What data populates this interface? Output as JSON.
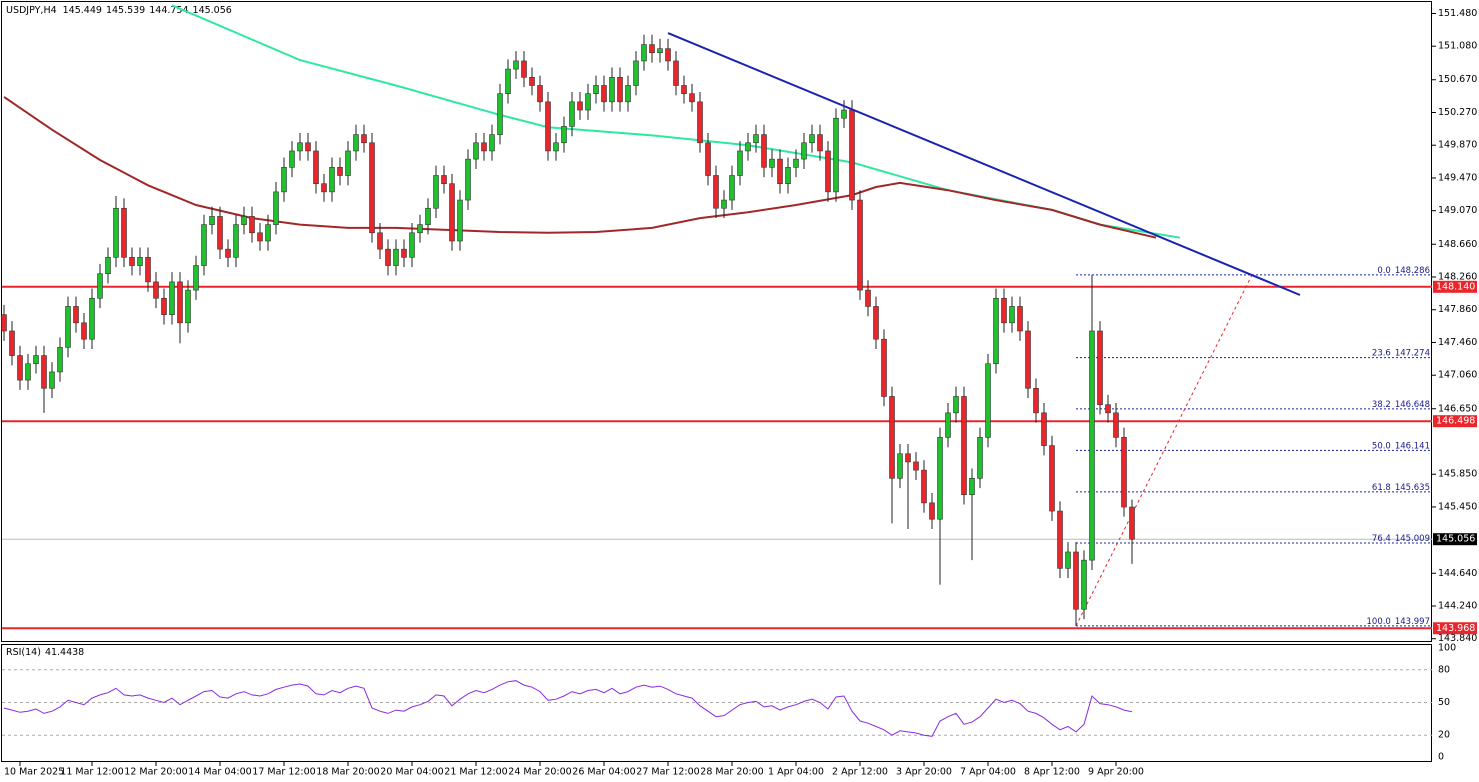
{
  "chart_data": {
    "type": "candlestick",
    "symbol": "USDJPY,H4",
    "xlim": [
      -0.5,
      178.5
    ],
    "ylim": [
      143.8,
      151.62
    ],
    "yticks": [
      {
        "value": 151.48,
        "label": "151.480"
      },
      {
        "value": 151.08,
        "label": "151.080"
      },
      {
        "value": 150.67,
        "label": "150.670"
      },
      {
        "value": 150.27,
        "label": "150.270"
      },
      {
        "value": 149.87,
        "label": "149.870"
      },
      {
        "value": 149.47,
        "label": "149.470"
      },
      {
        "value": 149.07,
        "label": "149.070"
      },
      {
        "value": 148.66,
        "label": "148.660"
      },
      {
        "value": 148.26,
        "label": "148.260"
      },
      {
        "value": 147.86,
        "label": "147.860"
      },
      {
        "value": 147.46,
        "label": "147.460"
      },
      {
        "value": 147.06,
        "label": "147.060"
      },
      {
        "value": 146.65,
        "label": "146.650"
      },
      {
        "value": 145.85,
        "label": "145.850"
      },
      {
        "value": 145.45,
        "label": "145.450"
      },
      {
        "value": 144.64,
        "label": "144.640"
      },
      {
        "value": 144.24,
        "label": "144.240"
      },
      {
        "value": 143.84,
        "label": "143.840"
      }
    ],
    "xticks": [
      {
        "value": 2,
        "label": "10 Mar 2025"
      },
      {
        "value": 11,
        "label": "11 Mar 12:00"
      },
      {
        "value": 19,
        "label": "12 Mar 20:00"
      },
      {
        "value": 27,
        "label": "14 Mar 04:00"
      },
      {
        "value": 35,
        "label": "17 Mar 12:00"
      },
      {
        "value": 43,
        "label": "18 Mar 20:00"
      },
      {
        "value": 51,
        "label": "20 Mar 04:00"
      },
      {
        "value": 59,
        "label": "21 Mar 12:00"
      },
      {
        "value": 67,
        "label": "24 Mar 20:00"
      },
      {
        "value": 75,
        "label": "26 Mar 04:00"
      },
      {
        "value": 83,
        "label": "27 Mar 12:00"
      },
      {
        "value": 91,
        "label": "28 Mar 20:00"
      },
      {
        "value": 99,
        "label": "1 Apr 04:00"
      },
      {
        "value": 107,
        "label": "2 Apr 12:00"
      },
      {
        "value": 115,
        "label": "3 Apr 20:00"
      },
      {
        "value": 123,
        "label": "7 Apr 04:00"
      },
      {
        "value": 131,
        "label": "8 Apr 12:00"
      },
      {
        "value": 139,
        "label": "9 Apr 20:00"
      }
    ],
    "up_color": "#1fc12f",
    "down_color": "#e8262c",
    "open": [
      147.8,
      147.6,
      147.3,
      147.0,
      147.2,
      147.3,
      146.9,
      147.1,
      147.4,
      147.9,
      147.7,
      147.5,
      148.0,
      148.3,
      148.5,
      149.1,
      148.5,
      148.4,
      148.5,
      148.2,
      148.0,
      147.8,
      148.2,
      147.7,
      148.1,
      148.4,
      148.9,
      149.0,
      148.6,
      148.5,
      148.9,
      149.0,
      148.8,
      148.7,
      148.9,
      149.3,
      149.6,
      149.8,
      149.9,
      149.8,
      149.4,
      149.3,
      149.6,
      149.5,
      149.8,
      150.0,
      149.9,
      148.8,
      148.6,
      148.4,
      148.6,
      148.5,
      148.8,
      148.9,
      149.1,
      149.5,
      149.4,
      148.7,
      149.2,
      149.7,
      149.9,
      149.8,
      150.0,
      150.5,
      150.8,
      150.9,
      150.7,
      150.6,
      150.4,
      149.8,
      149.9,
      150.1,
      150.4,
      150.3,
      150.5,
      150.6,
      150.4,
      150.7,
      150.4,
      150.6,
      150.9,
      151.1,
      151.0,
      151.05,
      150.9,
      150.6,
      150.5,
      150.4,
      149.9,
      149.5,
      149.1,
      149.2,
      149.5,
      149.8,
      149.9,
      150.0,
      149.6,
      149.7,
      149.4,
      149.6,
      149.7,
      149.9,
      150.0,
      149.8,
      149.3,
      150.2,
      150.3,
      149.2,
      148.1,
      147.9,
      147.5,
      146.8,
      145.8,
      146.1,
      146.0,
      145.9,
      145.5,
      145.3,
      146.3,
      146.6,
      146.8,
      145.6,
      145.8,
      146.3,
      147.2,
      148.0,
      147.7,
      147.9,
      147.6,
      146.9,
      146.6,
      146.2,
      145.4,
      144.7,
      144.9,
      144.2,
      144.8,
      147.6,
      146.7,
      146.6,
      146.3,
      145.449
    ],
    "high": [
      147.92,
      147.72,
      147.42,
      147.32,
      147.42,
      147.42,
      147.22,
      147.52,
      148.02,
      148.02,
      147.82,
      148.12,
      148.42,
      148.62,
      149.25,
      149.22,
      148.62,
      148.62,
      148.62,
      148.32,
      148.12,
      148.32,
      148.32,
      148.22,
      148.52,
      149.02,
      149.12,
      149.12,
      148.72,
      149.02,
      149.12,
      149.12,
      148.92,
      149.02,
      149.42,
      149.72,
      149.92,
      150.02,
      150.02,
      149.92,
      149.52,
      149.72,
      149.72,
      149.92,
      150.12,
      150.12,
      150.02,
      148.92,
      148.72,
      148.72,
      148.72,
      148.92,
      149.02,
      149.22,
      149.62,
      149.62,
      149.52,
      149.32,
      149.82,
      150.02,
      150.02,
      150.12,
      150.62,
      150.92,
      151.02,
      151.02,
      150.82,
      150.72,
      150.52,
      150.02,
      150.22,
      150.52,
      150.52,
      150.62,
      150.72,
      150.72,
      150.82,
      150.82,
      150.72,
      151.02,
      151.22,
      151.22,
      151.17,
      151.17,
      151.02,
      150.72,
      150.62,
      150.52,
      150.02,
      149.62,
      149.32,
      149.62,
      149.92,
      150.02,
      150.12,
      150.12,
      149.82,
      149.82,
      149.72,
      149.82,
      150.02,
      150.12,
      150.12,
      149.92,
      150.32,
      150.42,
      150.42,
      149.32,
      148.22,
      148.02,
      147.62,
      146.92,
      146.22,
      146.22,
      146.12,
      146.02,
      145.62,
      146.42,
      146.72,
      146.92,
      146.92,
      145.92,
      146.42,
      147.32,
      148.12,
      148.12,
      148.02,
      148.02,
      147.72,
      147.02,
      146.72,
      146.32,
      145.52,
      145.02,
      145.02,
      144.92,
      148.286,
      147.72,
      146.82,
      146.72,
      146.42,
      145.539
    ],
    "low": [
      147.48,
      147.18,
      146.88,
      146.88,
      147.08,
      146.6,
      146.78,
      146.98,
      147.28,
      147.58,
      147.38,
      147.38,
      147.88,
      148.18,
      148.38,
      148.38,
      148.28,
      148.28,
      148.08,
      147.88,
      147.68,
      147.68,
      147.45,
      147.58,
      147.98,
      148.28,
      148.78,
      148.48,
      148.38,
      148.38,
      148.78,
      148.68,
      148.58,
      148.58,
      148.78,
      149.18,
      149.48,
      149.68,
      149.68,
      149.28,
      149.18,
      149.18,
      149.38,
      149.38,
      149.68,
      149.78,
      148.68,
      148.48,
      148.28,
      148.28,
      148.38,
      148.38,
      148.68,
      148.78,
      148.98,
      149.28,
      148.58,
      148.58,
      149.08,
      149.58,
      149.68,
      149.68,
      149.88,
      150.38,
      150.68,
      150.58,
      150.48,
      150.28,
      149.68,
      149.68,
      149.78,
      149.98,
      150.18,
      150.18,
      150.38,
      150.28,
      150.28,
      150.28,
      150.28,
      150.48,
      150.78,
      150.88,
      150.88,
      150.78,
      150.48,
      150.38,
      150.28,
      149.78,
      149.38,
      148.98,
      148.98,
      149.08,
      149.38,
      149.68,
      149.78,
      149.48,
      149.48,
      149.28,
      149.28,
      149.48,
      149.58,
      149.78,
      149.68,
      149.18,
      149.18,
      150.08,
      149.08,
      147.98,
      147.78,
      147.38,
      146.68,
      145.25,
      145.68,
      145.18,
      145.78,
      145.38,
      145.18,
      144.5,
      146.18,
      146.48,
      145.48,
      144.8,
      145.68,
      146.18,
      147.08,
      147.58,
      147.58,
      147.48,
      146.78,
      146.48,
      146.08,
      145.28,
      144.58,
      144.58,
      143.997,
      144.08,
      144.68,
      146.58,
      146.48,
      146.18,
      145.33,
      144.754
    ],
    "close": [
      147.6,
      147.3,
      147.0,
      147.2,
      147.3,
      146.9,
      147.1,
      147.4,
      147.9,
      147.7,
      147.5,
      148.0,
      148.3,
      148.5,
      149.1,
      148.5,
      148.4,
      148.5,
      148.2,
      148.0,
      147.8,
      148.2,
      147.7,
      148.1,
      148.4,
      148.9,
      149.0,
      148.6,
      148.5,
      148.9,
      149.0,
      148.8,
      148.7,
      148.9,
      149.3,
      149.6,
      149.8,
      149.9,
      149.8,
      149.4,
      149.3,
      149.6,
      149.5,
      149.8,
      150.0,
      149.9,
      148.8,
      148.6,
      148.4,
      148.6,
      148.5,
      148.8,
      148.9,
      149.1,
      149.5,
      149.4,
      148.7,
      149.2,
      149.7,
      149.9,
      149.8,
      150.0,
      150.5,
      150.8,
      150.9,
      150.7,
      150.6,
      150.4,
      149.8,
      149.9,
      150.1,
      150.4,
      150.3,
      150.5,
      150.6,
      150.4,
      150.7,
      150.4,
      150.6,
      150.9,
      151.1,
      151.0,
      151.05,
      150.9,
      150.6,
      150.5,
      150.4,
      149.9,
      149.5,
      149.1,
      149.2,
      149.5,
      149.8,
      149.9,
      150.0,
      149.6,
      149.7,
      149.4,
      149.6,
      149.7,
      149.9,
      150.0,
      149.8,
      149.3,
      150.2,
      150.3,
      149.2,
      148.1,
      147.9,
      147.5,
      146.8,
      145.8,
      146.1,
      146.0,
      145.9,
      145.5,
      145.3,
      146.3,
      146.6,
      146.8,
      145.6,
      145.8,
      146.3,
      147.2,
      148.0,
      147.7,
      147.9,
      147.6,
      146.9,
      146.6,
      146.2,
      145.4,
      144.7,
      144.9,
      144.2,
      144.8,
      147.6,
      146.7,
      146.6,
      146.3,
      145.449,
      145.056
    ],
    "ma": [
      {
        "color": "#2ee8a0",
        "x": [
          21,
          37,
          49,
          62,
          68,
          81,
          93,
          106,
          118,
          131,
          137,
          147
        ],
        "values": [
          151.58,
          150.91,
          150.6,
          150.24,
          150.09,
          149.99,
          149.87,
          149.66,
          149.32,
          149.08,
          148.9,
          148.74
        ]
      },
      {
        "color": "#a02828",
        "x": [
          0,
          6,
          12,
          18,
          24,
          31,
          37,
          43,
          49,
          62,
          68,
          74,
          81,
          87,
          93,
          99,
          106,
          109,
          112,
          118,
          124,
          131,
          137,
          144
        ],
        "values": [
          150.46,
          150.06,
          149.69,
          149.38,
          149.14,
          148.98,
          148.9,
          148.86,
          148.86,
          148.81,
          148.8,
          148.81,
          148.86,
          148.98,
          149.05,
          149.14,
          149.26,
          149.36,
          149.41,
          149.32,
          149.2,
          149.08,
          148.9,
          148.74
        ]
      }
    ],
    "trendline": {
      "color": "#1a23b0",
      "x": [
        83,
        162
      ],
      "values": [
        151.24,
        148.04
      ]
    },
    "levels": [
      {
        "value": 148.14,
        "label": "148.140"
      },
      {
        "value": 146.498,
        "label": "146.498"
      },
      {
        "value": 143.968,
        "label": "143.968"
      }
    ],
    "level_color": "#e8262c",
    "fib": [
      {
        "ratio": "0.0",
        "value": 148.286
      },
      {
        "ratio": "23.6",
        "value": 147.274
      },
      {
        "ratio": "38.2",
        "value": 146.648
      },
      {
        "ratio": "50.0",
        "value": 146.141
      },
      {
        "ratio": "61.8",
        "value": 145.635
      },
      {
        "ratio": "76.4",
        "value": 145.009
      },
      {
        "ratio": "100.0",
        "value": 143.997
      }
    ],
    "fib_start": 134,
    "fib_line": {
      "x": [
        134,
        156
      ],
      "values": [
        143.997,
        148.286
      ]
    },
    "rsi": {
      "label": "RSI(14)",
      "value": 41.4438,
      "color": "#8a2be2",
      "ylim": [
        0,
        100
      ],
      "yticks": [
        0,
        20,
        50,
        80,
        100
      ],
      "values": [
        45,
        43,
        41,
        42,
        44,
        40,
        42,
        46,
        52,
        50,
        48,
        54,
        57,
        59,
        63,
        57,
        56,
        57,
        54,
        52,
        50,
        54,
        48,
        52,
        56,
        60,
        61,
        55,
        54,
        58,
        60,
        57,
        56,
        58,
        62,
        64,
        66,
        67,
        65,
        58,
        57,
        61,
        59,
        63,
        65,
        63,
        45,
        42,
        40,
        43,
        42,
        46,
        48,
        51,
        57,
        56,
        47,
        53,
        58,
        61,
        59,
        62,
        66,
        69,
        70,
        66,
        64,
        60,
        52,
        53,
        56,
        60,
        58,
        61,
        62,
        59,
        63,
        58,
        60,
        64,
        66,
        64,
        65,
        62,
        58,
        56,
        54,
        47,
        42,
        37,
        38,
        43,
        48,
        50,
        51,
        46,
        47,
        43,
        46,
        48,
        51,
        53,
        50,
        44,
        55,
        56,
        42,
        33,
        31,
        28,
        25,
        20,
        24,
        23,
        22,
        20,
        19,
        33,
        37,
        40,
        30,
        32,
        37,
        45,
        53,
        50,
        52,
        49,
        42,
        40,
        36,
        30,
        25,
        28,
        23,
        30,
        56,
        49,
        48,
        46,
        43,
        41.4438
      ]
    }
  }
}
